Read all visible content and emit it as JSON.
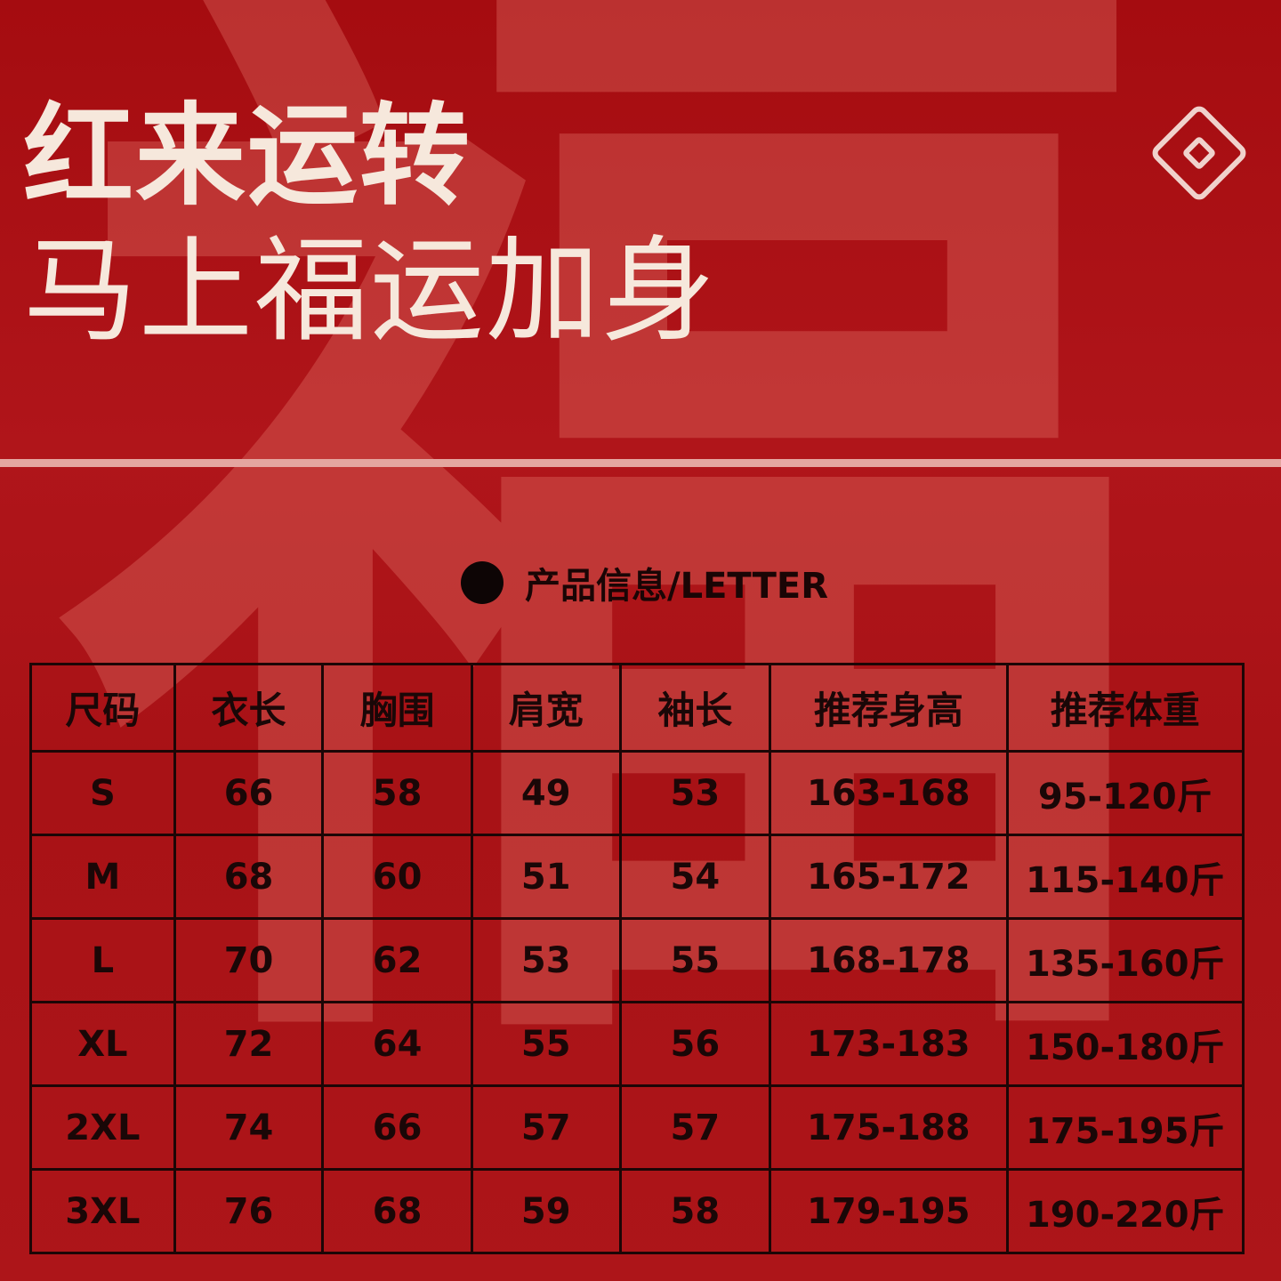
{
  "watermark": "福",
  "title": {
    "line1": "红来运转",
    "line2": "马上福运加身"
  },
  "section": {
    "heading": "产品信息/LETTER"
  },
  "table": {
    "headers": [
      "尺码",
      "衣长",
      "胸围",
      "肩宽",
      "袖长",
      "推荐身高",
      "推荐体重"
    ],
    "rows": [
      [
        "S",
        "66",
        "58",
        "49",
        "53",
        "163-168",
        "95-120斤"
      ],
      [
        "M",
        "68",
        "60",
        "51",
        "54",
        "165-172",
        "115-140斤"
      ],
      [
        "L",
        "70",
        "62",
        "53",
        "55",
        "168-178",
        "135-160斤"
      ],
      [
        "XL",
        "72",
        "64",
        "55",
        "56",
        "173-183",
        "150-180斤"
      ],
      [
        "2XL",
        "74",
        "66",
        "57",
        "57",
        "175-188",
        "175-195斤"
      ],
      [
        "3XL",
        "76",
        "68",
        "59",
        "58",
        "179-195",
        "190-220斤"
      ]
    ]
  },
  "colors": {
    "background": "#a80f12",
    "title": "#f6e8dc",
    "text": "#1a0707"
  }
}
